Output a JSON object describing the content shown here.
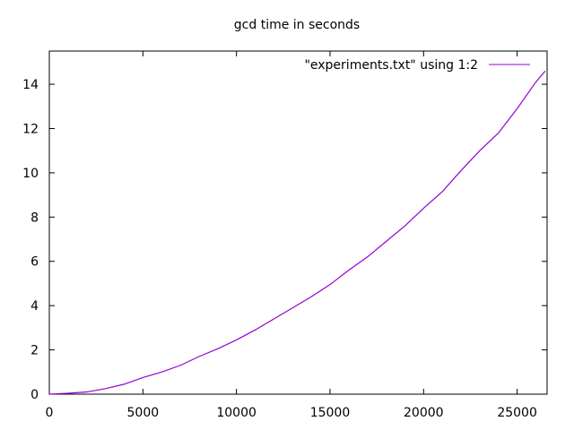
{
  "chart_data": {
    "type": "line",
    "title": "gcd time in seconds",
    "xlabel": "",
    "ylabel": "",
    "xlim": [
      0,
      26600
    ],
    "ylim": [
      0,
      15.5
    ],
    "x_ticks": [
      0,
      5000,
      10000,
      15000,
      20000,
      25000
    ],
    "x_tick_labels": [
      "0",
      "5000",
      "10000",
      "15000",
      "20000",
      "25000"
    ],
    "y_ticks": [
      0,
      2,
      4,
      6,
      8,
      10,
      12,
      14
    ],
    "y_tick_labels": [
      "0",
      "2",
      "4",
      "6",
      "8",
      "10",
      "12",
      "14"
    ],
    "grid": false,
    "legend_position": "top-right",
    "series": [
      {
        "name": "\"experiments.txt\" using 1:2",
        "color": "#9400d3",
        "x": [
          0,
          1000,
          2000,
          3000,
          4000,
          5000,
          6000,
          7000,
          8000,
          9000,
          10000,
          11000,
          12000,
          13000,
          14000,
          15000,
          16000,
          17000,
          18000,
          19000,
          20000,
          21000,
          22000,
          23000,
          24000,
          25000,
          26000,
          26500
        ],
        "y": [
          0,
          0.04,
          0.1,
          0.25,
          0.45,
          0.75,
          1.0,
          1.3,
          1.7,
          2.05,
          2.45,
          2.9,
          3.4,
          3.9,
          4.4,
          4.95,
          5.6,
          6.2,
          6.9,
          7.6,
          8.4,
          9.15,
          10.1,
          11.0,
          11.8,
          12.9,
          14.1,
          14.6
        ]
      }
    ]
  }
}
